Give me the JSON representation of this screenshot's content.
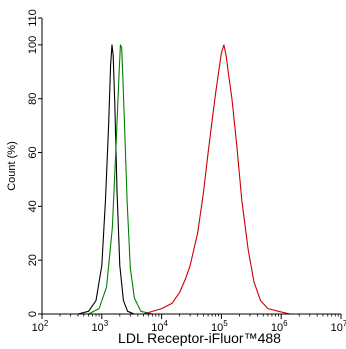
{
  "chart_data": {
    "type": "line",
    "title": "",
    "xlabel": "LDL Receptor-iFluor™488",
    "ylabel": "Count  (%)",
    "x_scale": "log",
    "xlim": [
      100,
      10000000
    ],
    "ylim": [
      0,
      110
    ],
    "x_ticks": [
      {
        "base": "10",
        "exp": "2",
        "value": 100
      },
      {
        "base": "10",
        "exp": "3",
        "value": 1000
      },
      {
        "base": "10",
        "exp": "4",
        "value": 10000
      },
      {
        "base": "10",
        "exp": "5",
        "value": 100000
      },
      {
        "base": "10",
        "exp": "6",
        "value": 1000000
      },
      {
        "base": "10",
        "exp": "7",
        "value": 10000000
      }
    ],
    "y_ticks": [
      "0",
      "20",
      "40",
      "60",
      "80",
      "100",
      "110"
    ],
    "y_tick_values": [
      0,
      20,
      40,
      60,
      80,
      100,
      110
    ],
    "grid": false,
    "series": [
      {
        "color": "#000000",
        "x": [
          400,
          600,
          800,
          1000,
          1150,
          1300,
          1400,
          1480,
          1550,
          1650,
          1800,
          2000,
          2300,
          2700,
          3500
        ],
        "y": [
          0,
          1,
          5,
          18,
          42,
          70,
          92,
          100,
          96,
          78,
          45,
          18,
          5,
          1,
          0
        ]
      },
      {
        "color": "#008000",
        "x": [
          600,
          900,
          1200,
          1500,
          1750,
          1950,
          2050,
          2150,
          2250,
          2400,
          2650,
          3000,
          3500,
          4500,
          7000
        ],
        "y": [
          0,
          2,
          10,
          32,
          65,
          90,
          100,
          99,
          88,
          70,
          42,
          17,
          6,
          1,
          0
        ]
      },
      {
        "color": "#cc0000",
        "x": [
          5000,
          10000,
          15000,
          20000,
          25000,
          30000,
          40000,
          50000,
          60000,
          70000,
          80000,
          90000,
          100000,
          110000,
          120000,
          130000,
          150000,
          180000,
          220000,
          280000,
          350000,
          450000,
          600000,
          900000,
          1400000
        ],
        "y": [
          0,
          2,
          4,
          8,
          13,
          18,
          30,
          45,
          60,
          72,
          82,
          90,
          97,
          100,
          96,
          90,
          80,
          63,
          42,
          24,
          12,
          5,
          2,
          1,
          0
        ]
      }
    ]
  }
}
